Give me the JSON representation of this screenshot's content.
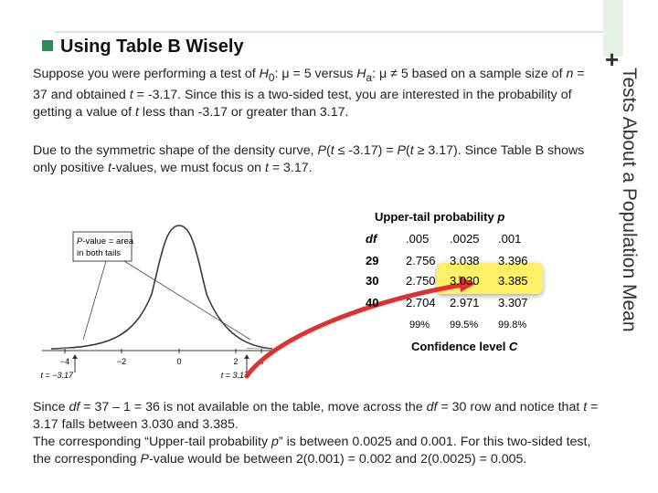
{
  "slide": {
    "side_title": "Tests About a Population Mean",
    "plus": "+",
    "heading": "Using Table B Wisely",
    "para1_parts": [
      "Suppose you were performing a test of ",
      "H",
      "0",
      ": μ = 5 versus ",
      "H",
      "a",
      ": μ ≠ 5 based on a sample size of ",
      "n",
      " = 37 and obtained ",
      "t",
      " = -3.17. Since this is a two-sided test, you are interested in the probability of getting a value of ",
      "t",
      " less than -3.17 or greater than 3.17."
    ],
    "para2_parts": [
      "Due to the symmetric shape of the density curve, ",
      "P",
      "(",
      "t",
      " ≤ -3.17) = ",
      "P",
      "(",
      "t",
      " ≥ 3.17). Since Table B shows only positive ",
      "t",
      "-values, we must focus on ",
      "t",
      " = 3.17."
    ],
    "para3_parts": [
      "Since ",
      "df",
      " = 37 – 1 = 36 is not available on the table, move across the ",
      "df",
      " = 30 row and notice that ",
      "t",
      " = 3.17 falls between 3.030 and 3.385.",
      "The corresponding “Upper-tail probability ",
      "p",
      "” is between 0.0025 and 0.001. For this two-sided test, the corresponding ",
      "P",
      "-value would be between 2(0.001) = 0.002 and 2(0.0025) = 0.005."
    ]
  },
  "table": {
    "title_prefix": "Upper-tail probability ",
    "title_var": "p",
    "header": [
      "df",
      ".005",
      ".0025",
      ".001"
    ],
    "rows": [
      [
        "29",
        "2.756",
        "3.038",
        "3.396"
      ],
      [
        "30",
        "2.750",
        "3.030",
        "3.385"
      ],
      [
        "40",
        "2.704",
        "2.971",
        "3.307"
      ]
    ],
    "confidence": [
      "99%",
      "99.5%",
      "99.8%"
    ],
    "caption_prefix": "Confidence level ",
    "caption_var": "C"
  },
  "figure": {
    "box_label_parts": [
      "P",
      "-value = area",
      "in both tails"
    ],
    "ticks": [
      "−4",
      "−2",
      "0",
      "2",
      "4"
    ],
    "left_marker": "t = −3.17",
    "right_marker": "t = 3.17"
  },
  "colors": {
    "accent": "#2e8b57",
    "highlight": "#fff066",
    "arrow": "#e03030",
    "curve": "#3a3a3a"
  }
}
